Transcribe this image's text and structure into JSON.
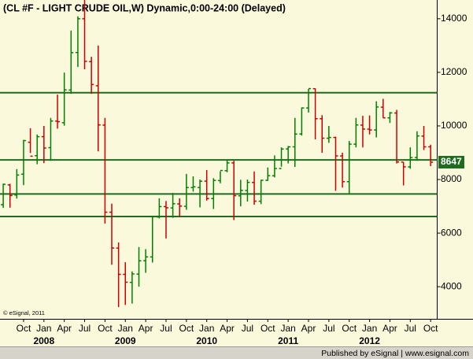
{
  "chart_data": {
    "type": "ohlc",
    "title": "(CL #F - LIGHT CRUDE OIL,W) Dynamic,0:00-24:00 (Delayed)",
    "copyright": "© eSignal, 2011",
    "footer": "Published by eSignal | www.esignal.com",
    "x": [
      "2007-07",
      "2007-08",
      "2007-09",
      "2007-10",
      "2007-11",
      "2007-12",
      "2008-01",
      "2008-02",
      "2008-03",
      "2008-04",
      "2008-05",
      "2008-06",
      "2008-07",
      "2008-08",
      "2008-09",
      "2008-10",
      "2008-11",
      "2008-12",
      "2009-01",
      "2009-02",
      "2009-03",
      "2009-04",
      "2009-05",
      "2009-06",
      "2009-07",
      "2009-08",
      "2009-09",
      "2009-10",
      "2009-11",
      "2009-12",
      "2010-01",
      "2010-02",
      "2010-03",
      "2010-04",
      "2010-05",
      "2010-06",
      "2010-07",
      "2010-08",
      "2010-09",
      "2010-10",
      "2010-11",
      "2010-12",
      "2011-01",
      "2011-02",
      "2011-03",
      "2011-04",
      "2011-05",
      "2011-06",
      "2011-07",
      "2011-08",
      "2011-09",
      "2011-10",
      "2011-11",
      "2011-12",
      "2012-01",
      "2012-02",
      "2012-03",
      "2012-04",
      "2012-05",
      "2012-06",
      "2012-07",
      "2012-08",
      "2012-09",
      "2012-10"
    ],
    "open": [
      7060,
      7800,
      7420,
      8200,
      9390,
      8890,
      9600,
      9190,
      10180,
      10120,
      11340,
      12740,
      14000,
      12400,
      11500,
      10030,
      6780,
      5440,
      4460,
      4160,
      4470,
      4970,
      5110,
      6600,
      6990,
      6940,
      7090,
      7000,
      7700,
      7700,
      7940,
      7290,
      7960,
      8330,
      8620,
      7390,
      7590,
      7890,
      7190,
      7970,
      8140,
      8410,
      9140,
      9220,
      9700,
      10670,
      11390,
      10270,
      9540,
      9570,
      8880,
      7920,
      9320,
      10030,
      9880,
      9850,
      10700,
      10300,
      10480,
      8650,
      8470,
      8820,
      9620,
      9220
    ],
    "high": [
      7847,
      7840,
      8390,
      9480,
      9910,
      9680,
      10000,
      10300,
      11170,
      11990,
      13560,
      14090,
      14727,
      12580,
      13000,
      10300,
      7100,
      5650,
      4912,
      4570,
      5480,
      5400,
      6650,
      7300,
      7200,
      7500,
      7300,
      8210,
      8120,
      8000,
      8352,
      8050,
      8310,
      8752,
      8700,
      7990,
      8000,
      8300,
      7990,
      8450,
      8900,
      9200,
      9250,
      10300,
      10690,
      11380,
      11400,
      10400,
      10000,
      9600,
      9000,
      9440,
      10300,
      10380,
      10390,
      10920,
      11010,
      10520,
      10600,
      8650,
      9200,
      9800,
      10000,
      9300
    ],
    "low": [
      6940,
      6950,
      7290,
      7790,
      8990,
      8570,
      8610,
      8700,
      9900,
      10010,
      11200,
      12200,
      12113,
      11200,
      9050,
      6357,
      4820,
      3240,
      3320,
      3370,
      4000,
      4520,
      4900,
      6550,
      5800,
      6570,
      6600,
      6870,
      7550,
      6960,
      7215,
      6900,
      7860,
      8270,
      6486,
      7000,
      7176,
      7060,
      7080,
      7950,
      8080,
      8480,
      8600,
      8470,
      9640,
      10500,
      9500,
      9000,
      9370,
      7580,
      7700,
      7460,
      9200,
      9200,
      9680,
      9570,
      10300,
      10110,
      8600,
      7780,
      8400,
      8700,
      9100,
      8500
    ],
    "close": [
      7821,
      7404,
      8166,
      9453,
      8871,
      9598,
      9175,
      10184,
      10158,
      11346,
      12735,
      14000,
      12412,
      11546,
      10037,
      6781,
      5443,
      4460,
      4168,
      4476,
      4966,
      5112,
      6608,
      6989,
      6945,
      7096,
      7007,
      7700,
      7728,
      7936,
      7289,
      7966,
      8337,
      8620,
      7397,
      7595,
      7895,
      7191,
      7972,
      8143,
      8411,
      9138,
      9219,
      9697,
      10672,
      11393,
      10270,
      9542,
      9570,
      8881,
      7920,
      9320,
      10036,
      9883,
      9848,
      10707,
      10302,
      10487,
      8653,
      8475,
      8820,
      9627,
      9219,
      8647
    ],
    "up_color": "#008000",
    "down_color": "#cc0000",
    "hlines": [
      11240,
      8730,
      7460,
      6620
    ],
    "hline_color": "#1f6b1f",
    "ylim": [
      2800,
      14700
    ],
    "yticks": [
      4000,
      6000,
      8000,
      10000,
      12000,
      14000
    ],
    "xticks": [
      {
        "value": "2007-10",
        "label": "Oct"
      },
      {
        "value": "2008-01",
        "label": "Jan"
      },
      {
        "value": "2008-04",
        "label": "Apr"
      },
      {
        "value": "2008-07",
        "label": "Jul"
      },
      {
        "value": "2008-10",
        "label": "Oct"
      },
      {
        "value": "2009-01",
        "label": "Jan"
      },
      {
        "value": "2009-04",
        "label": "Apr"
      },
      {
        "value": "2009-07",
        "label": "Jul"
      },
      {
        "value": "2009-10",
        "label": "Oct"
      },
      {
        "value": "2010-01",
        "label": "Jan"
      },
      {
        "value": "2010-04",
        "label": "Apr"
      },
      {
        "value": "2010-07",
        "label": "Jul"
      },
      {
        "value": "2010-10",
        "label": "Oct"
      },
      {
        "value": "2011-01",
        "label": "Jan"
      },
      {
        "value": "2011-04",
        "label": "Apr"
      },
      {
        "value": "2011-07",
        "label": "Jul"
      },
      {
        "value": "2011-10",
        "label": "Oct"
      },
      {
        "value": "2012-01",
        "label": "Jan"
      },
      {
        "value": "2012-04",
        "label": "Apr"
      },
      {
        "value": "2012-07",
        "label": "Jul"
      },
      {
        "value": "2012-10",
        "label": "Oct"
      }
    ],
    "year_labels": [
      {
        "value": "2008-01",
        "label": "2008"
      },
      {
        "value": "2009-01",
        "label": "2009"
      },
      {
        "value": "2010-01",
        "label": "2010"
      },
      {
        "value": "2011-01",
        "label": "2011"
      },
      {
        "value": "2012-01",
        "label": "2012"
      }
    ]
  }
}
